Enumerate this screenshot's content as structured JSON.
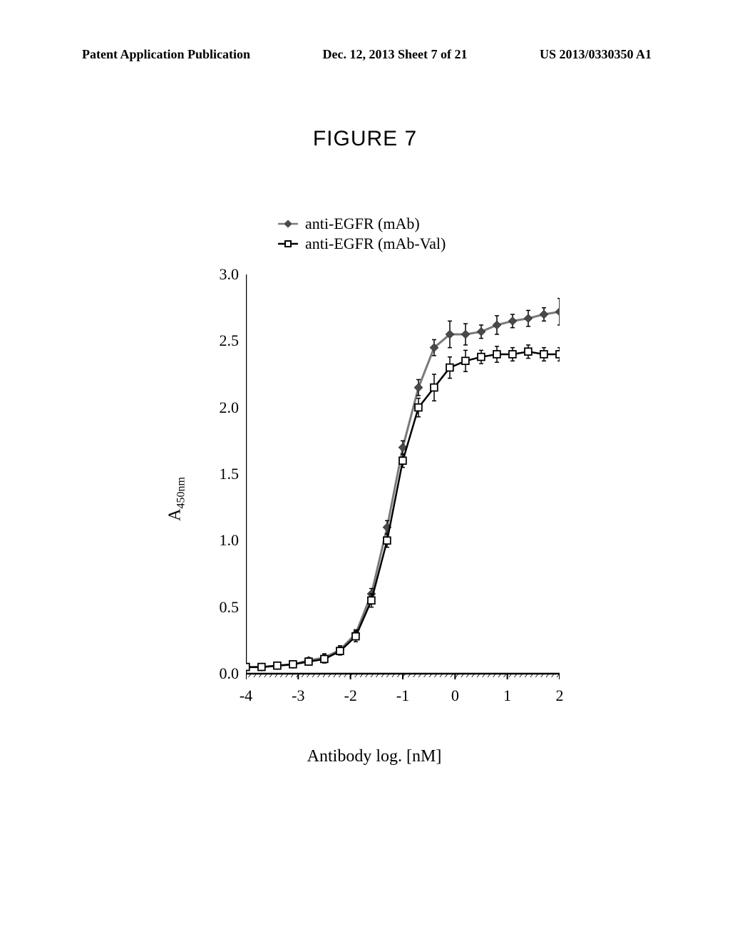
{
  "header": {
    "left": "Patent Application Publication",
    "center": "Dec. 12, 2013  Sheet 7 of 21",
    "right": "US 2013/0330350 A1"
  },
  "figure_title": "FIGURE 7",
  "legend": {
    "series1_label": "anti-EGFR (mAb)",
    "series2_label": "anti-EGFR (mAb-Val)"
  },
  "chart": {
    "type": "line",
    "background_color": "#ffffff",
    "axis_color": "#000000",
    "axis_width": 2.5,
    "tick_length": 8,
    "xlabel": "Antibody log. [nM]",
    "ylabel_prefix": "A",
    "ylabel_sub": "450nm",
    "xlim": [
      -4,
      2
    ],
    "ylim": [
      0,
      3.0
    ],
    "xticks": [
      -4,
      -3,
      -2,
      -1,
      0,
      1,
      2
    ],
    "yticks": [
      0.0,
      0.5,
      1.0,
      1.5,
      2.0,
      2.5,
      3.0
    ],
    "ytick_labels": [
      "0.0",
      "0.5",
      "1.0",
      "1.5",
      "2.0",
      "2.5",
      "3.0"
    ],
    "label_fontsize": 24,
    "tick_fontsize": 22,
    "series": [
      {
        "name": "anti-EGFR (mAb)",
        "marker": "diamond",
        "marker_size": 6,
        "marker_fill": "#4a4a4a",
        "line_color": "#7a7a7a",
        "line_width": 3,
        "x": [
          -4.0,
          -3.7,
          -3.4,
          -3.1,
          -2.8,
          -2.5,
          -2.2,
          -1.9,
          -1.6,
          -1.3,
          -1.0,
          -0.7,
          -0.4,
          -0.1,
          0.2,
          0.5,
          0.8,
          1.1,
          1.4,
          1.7,
          2.0
        ],
        "y": [
          0.05,
          0.05,
          0.06,
          0.07,
          0.1,
          0.12,
          0.18,
          0.3,
          0.6,
          1.1,
          1.7,
          2.15,
          2.45,
          2.55,
          2.55,
          2.57,
          2.62,
          2.65,
          2.67,
          2.7,
          2.72
        ],
        "err": [
          0.02,
          0.02,
          0.02,
          0.02,
          0.02,
          0.03,
          0.03,
          0.03,
          0.04,
          0.05,
          0.05,
          0.06,
          0.06,
          0.1,
          0.08,
          0.05,
          0.07,
          0.05,
          0.06,
          0.05,
          0.1
        ]
      },
      {
        "name": "anti-EGFR (mAb-Val)",
        "marker": "square",
        "marker_size": 7,
        "marker_fill": "#ffffff",
        "marker_stroke": "#000000",
        "line_color": "#000000",
        "line_width": 2.5,
        "x": [
          -4.0,
          -3.7,
          -3.4,
          -3.1,
          -2.8,
          -2.5,
          -2.2,
          -1.9,
          -1.6,
          -1.3,
          -1.0,
          -0.7,
          -0.4,
          -0.1,
          0.2,
          0.5,
          0.8,
          1.1,
          1.4,
          1.7,
          2.0
        ],
        "y": [
          0.05,
          0.05,
          0.06,
          0.07,
          0.09,
          0.11,
          0.17,
          0.28,
          0.55,
          1.0,
          1.6,
          2.0,
          2.15,
          2.3,
          2.35,
          2.38,
          2.4,
          2.4,
          2.42,
          2.4,
          2.4
        ],
        "err": [
          0.02,
          0.02,
          0.02,
          0.02,
          0.02,
          0.03,
          0.03,
          0.04,
          0.05,
          0.05,
          0.05,
          0.07,
          0.1,
          0.08,
          0.08,
          0.05,
          0.06,
          0.05,
          0.05,
          0.05,
          0.05
        ]
      }
    ]
  }
}
